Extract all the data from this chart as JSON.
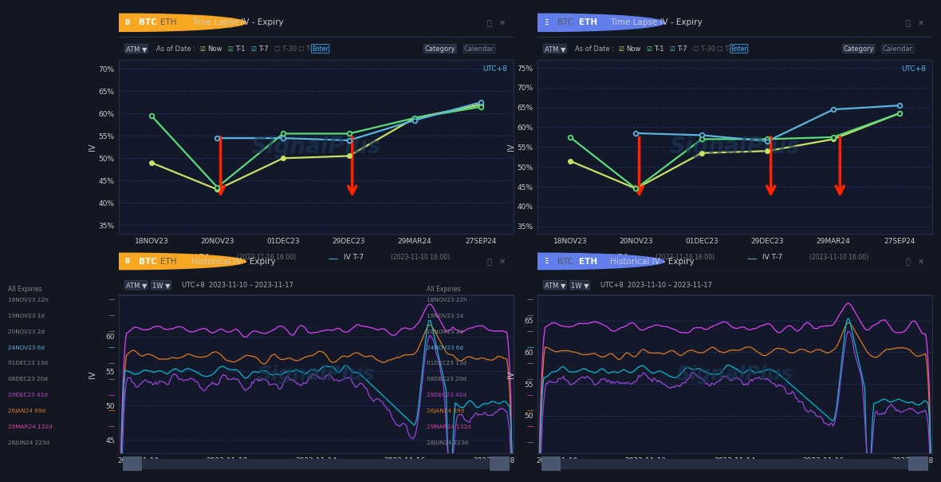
{
  "bg_color": "#131722",
  "text_color": "#cccccc",
  "dashed_color": "#1a3060",
  "tl_x_labels": [
    "18NOV23",
    "20NOV23",
    "01DEC23",
    "29DEC23",
    "29MAR24",
    "27SEP24"
  ],
  "btc_now": [
    49.0,
    43.0,
    50.0,
    50.5,
    59.0,
    62.0
  ],
  "btc_t1": [
    59.5,
    43.5,
    55.5,
    55.5,
    59.0,
    61.5
  ],
  "btc_t7": [
    54.5,
    54.5,
    54.0,
    58.5,
    62.5
  ],
  "eth_now": [
    51.5,
    44.5,
    53.5,
    54.0,
    57.0,
    63.5
  ],
  "eth_t1": [
    57.5,
    44.5,
    57.0,
    57.0,
    57.5,
    63.5
  ],
  "eth_t7": [
    58.5,
    58.0,
    56.5,
    64.5,
    65.5
  ],
  "btc_yticks": [
    35,
    40,
    45,
    50,
    55,
    60,
    65,
    70
  ],
  "btc_ytick_labels": [
    "35%",
    "40%",
    "45%",
    "50%",
    "55%",
    "60%",
    "65%",
    "70%"
  ],
  "btc_ylim": [
    33,
    72
  ],
  "eth_yticks": [
    35,
    40,
    45,
    50,
    55,
    60,
    65,
    70,
    75
  ],
  "eth_ytick_labels": [
    "35%",
    "40%",
    "45%",
    "50%",
    "55%",
    "60%",
    "65%",
    "70%",
    "75%"
  ],
  "eth_ylim": [
    33,
    77
  ],
  "now_color": "#c8e063",
  "t1_color": "#5adc78",
  "t7_color": "#5ab4dc",
  "arrow_color": "#ff2200",
  "hist_x_labels": [
    "2023-11-10",
    "2023-11-12",
    "2023-11-14",
    "2023-11-16",
    "2023-11-18"
  ],
  "btc_hist_ylim": [
    43,
    66
  ],
  "btc_hist_yticks": [
    45,
    50,
    55,
    60
  ],
  "eth_hist_ylim": [
    44,
    69
  ],
  "eth_hist_yticks": [
    50,
    55,
    60,
    65
  ],
  "pink_color": "#e040fb",
  "orange_color": "#e07820",
  "cyan_color": "#00bcd4",
  "purple_color": "#9c44dc",
  "legend_entries": [
    "18NOV23 22h",
    "19NOV23 1d",
    "20NOV23 2d",
    "24NOV23 6d",
    "01DEC23 13d",
    "08DEC23 20d",
    "29DEC23 41d",
    "26JAN24 69d",
    "29MAR24 132d",
    "28JUN24 223d"
  ],
  "legend_colors": [
    "#888888",
    "#888888",
    "#888888",
    "#5ab4dc",
    "#888888",
    "#888888",
    "#cc44cc",
    "#e07820",
    "#dd44aa",
    "#888888"
  ]
}
